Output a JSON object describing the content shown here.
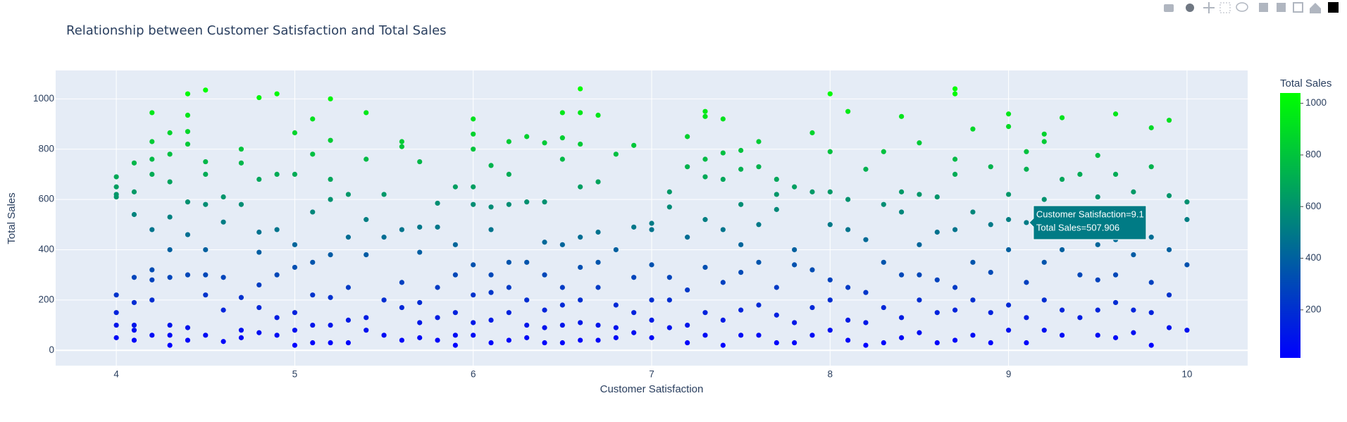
{
  "chart_data": {
    "type": "scatter",
    "title": "Relationship between Customer Satisfaction and Total Sales",
    "x_label": "Customer Satisfaction",
    "y_label": "Total Sales",
    "xlim": [
      3.66,
      10.34
    ],
    "xticks": [
      4,
      5,
      6,
      7,
      8,
      9,
      10
    ],
    "ylim": [
      -61,
      1113
    ],
    "yticks": [
      0,
      200,
      400,
      600,
      800,
      1000
    ],
    "grid": true,
    "colorbar": {
      "title": "Total Sales",
      "cmin": 14,
      "cmax": 1040,
      "ticks": [
        200,
        400,
        600,
        800,
        1000
      ],
      "colorscale": [
        [
          0,
          "#0000ff"
        ],
        [
          0.5,
          "#008080"
        ],
        [
          1,
          "#00ff00"
        ]
      ]
    },
    "tooltip": {
      "x": 9.1,
      "y": 507.906,
      "lines": [
        "Customer Satisfaction=9.1",
        "Total Sales=507.906"
      ]
    },
    "x": [
      4,
      4,
      4,
      4,
      4,
      4,
      4,
      4,
      4.1,
      4.1,
      4.1,
      4.1,
      4.1,
      4.1,
      4.1,
      4.1,
      4.2,
      4.2,
      4.2,
      4.2,
      4.2,
      4.2,
      4.2,
      4.2,
      4.2,
      4.3,
      4.3,
      4.3,
      4.3,
      4.3,
      4.3,
      4.3,
      4.3,
      4.3,
      4.4,
      4.4,
      4.4,
      4.4,
      4.4,
      4.4,
      4.4,
      4.4,
      4.4,
      4.5,
      4.5,
      4.5,
      4.5,
      4.5,
      4.5,
      4.5,
      4.5,
      4.6,
      4.6,
      4.6,
      4.6,
      4.6,
      4.7,
      4.7,
      4.7,
      4.7,
      4.7,
      4.7,
      4.8,
      4.8,
      4.8,
      4.8,
      4.8,
      4.8,
      4.8,
      4.9,
      4.9,
      4.9,
      4.9,
      4.9,
      4.9,
      5,
      5,
      5,
      5,
      5,
      5,
      5,
      5.1,
      5.1,
      5.1,
      5.1,
      5.1,
      5.1,
      5.1,
      5.2,
      5.2,
      5.2,
      5.2,
      5.2,
      5.2,
      5.2,
      5.2,
      5.3,
      5.3,
      5.3,
      5.3,
      5.3,
      5.4,
      5.4,
      5.4,
      5.4,
      5.4,
      5.4,
      5.5,
      5.5,
      5.5,
      5.5,
      5.6,
      5.6,
      5.6,
      5.6,
      5.6,
      5.6,
      5.7,
      5.7,
      5.7,
      5.7,
      5.7,
      5.7,
      5.8,
      5.8,
      5.8,
      5.8,
      5.8,
      5.9,
      5.9,
      5.9,
      5.9,
      5.9,
      5.9,
      6,
      6,
      6,
      6,
      6,
      6,
      6,
      6,
      6,
      6.1,
      6.1,
      6.1,
      6.1,
      6.1,
      6.1,
      6.1,
      6.2,
      6.2,
      6.2,
      6.2,
      6.2,
      6.2,
      6.2,
      6.3,
      6.3,
      6.3,
      6.3,
      6.3,
      6.3,
      6.4,
      6.4,
      6.4,
      6.4,
      6.4,
      6.4,
      6.4,
      6.5,
      6.5,
      6.5,
      6.5,
      6.5,
      6.5,
      6.5,
      6.5,
      6.6,
      6.6,
      6.6,
      6.6,
      6.6,
      6.6,
      6.6,
      6.6,
      6.6,
      6.7,
      6.7,
      6.7,
      6.7,
      6.7,
      6.7,
      6.7,
      6.8,
      6.8,
      6.8,
      6.8,
      6.8,
      6.9,
      6.9,
      6.9,
      6.9,
      6.9,
      7,
      7,
      7,
      7,
      7,
      7,
      7.1,
      7.1,
      7.1,
      7.1,
      7.1,
      7.2,
      7.2,
      7.2,
      7.2,
      7.2,
      7.2,
      7.3,
      7.3,
      7.3,
      7.3,
      7.3,
      7.3,
      7.3,
      7.3,
      7.4,
      7.4,
      7.4,
      7.4,
      7.4,
      7.4,
      7.4,
      7.5,
      7.5,
      7.5,
      7.5,
      7.5,
      7.5,
      7.5,
      7.6,
      7.6,
      7.6,
      7.6,
      7.6,
      7.6,
      7.7,
      7.7,
      7.7,
      7.7,
      7.7,
      7.7,
      7.8,
      7.8,
      7.8,
      7.8,
      7.8,
      7.9,
      7.9,
      7.9,
      7.9,
      7.9,
      8,
      8,
      8,
      8,
      8,
      8,
      8,
      8.1,
      8.1,
      8.1,
      8.1,
      8.1,
      8.1,
      8.2,
      8.2,
      8.2,
      8.2,
      8.2,
      8.3,
      8.3,
      8.3,
      8.3,
      8.3,
      8.4,
      8.4,
      8.4,
      8.4,
      8.4,
      8.4,
      8.5,
      8.5,
      8.5,
      8.5,
      8.5,
      8.5,
      8.6,
      8.6,
      8.6,
      8.6,
      8.6,
      8.7,
      8.7,
      8.7,
      8.7,
      8.7,
      8.7,
      8.7,
      8.7,
      8.8,
      8.8,
      8.8,
      8.8,
      8.8,
      8.9,
      8.9,
      8.9,
      8.9,
      8.9,
      9,
      9,
      9,
      9,
      9,
      9,
      9,
      9.1,
      9.1,
      9.1,
      9.1,
      9.1,
      9.1,
      9.2,
      9.2,
      9.2,
      9.2,
      9.2,
      9.2,
      9.3,
      9.3,
      9.3,
      9.3,
      9.3,
      9.4,
      9.4,
      9.4,
      9.4,
      9.5,
      9.5,
      9.5,
      9.5,
      9.5,
      9.5,
      9.6,
      9.6,
      9.6,
      9.6,
      9.6,
      9.6,
      9.7,
      9.7,
      9.7,
      9.7,
      9.8,
      9.8,
      9.8,
      9.8,
      9.8,
      9.8,
      9.9,
      9.9,
      9.9,
      9.9,
      9.9,
      10,
      10,
      10,
      10
    ],
    "values": [
      50,
      100,
      150,
      220,
      610,
      620,
      650,
      690,
      40,
      80,
      100,
      190,
      290,
      540,
      630,
      745,
      60,
      200,
      280,
      320,
      480,
      700,
      760,
      830,
      945,
      20,
      60,
      100,
      290,
      400,
      530,
      670,
      780,
      865,
      40,
      90,
      300,
      460,
      590,
      820,
      870,
      935,
      1020,
      60,
      220,
      300,
      400,
      580,
      700,
      750,
      1035,
      35,
      160,
      290,
      510,
      610,
      50,
      80,
      210,
      580,
      745,
      800,
      70,
      170,
      260,
      390,
      470,
      680,
      1005,
      60,
      130,
      300,
      480,
      700,
      1020,
      20,
      80,
      150,
      330,
      420,
      700,
      865,
      30,
      100,
      220,
      350,
      550,
      780,
      920,
      30,
      100,
      210,
      380,
      600,
      680,
      835,
      1000,
      30,
      120,
      250,
      450,
      620,
      80,
      130,
      380,
      520,
      760,
      945,
      60,
      200,
      450,
      620,
      40,
      170,
      270,
      480,
      810,
      830,
      50,
      110,
      190,
      390,
      490,
      750,
      40,
      130,
      250,
      490,
      585,
      20,
      60,
      150,
      300,
      420,
      650,
      60,
      110,
      220,
      340,
      580,
      650,
      800,
      860,
      920,
      30,
      120,
      230,
      300,
      480,
      570,
      735,
      40,
      150,
      250,
      350,
      580,
      700,
      830,
      50,
      100,
      200,
      350,
      590,
      850,
      30,
      90,
      160,
      300,
      430,
      590,
      825,
      30,
      100,
      180,
      250,
      420,
      760,
      845,
      945,
      40,
      110,
      200,
      330,
      450,
      650,
      820,
      945,
      1040,
      40,
      100,
      250,
      350,
      470,
      670,
      935,
      50,
      90,
      180,
      400,
      780,
      70,
      150,
      290,
      490,
      815,
      50,
      120,
      200,
      340,
      480,
      505,
      90,
      200,
      290,
      570,
      630,
      30,
      100,
      240,
      450,
      730,
      850,
      60,
      150,
      330,
      520,
      690,
      760,
      930,
      950,
      20,
      120,
      270,
      480,
      680,
      785,
      920,
      60,
      160,
      310,
      420,
      580,
      720,
      795,
      60,
      180,
      350,
      500,
      730,
      830,
      30,
      140,
      250,
      560,
      620,
      680,
      30,
      110,
      340,
      400,
      650,
      60,
      170,
      320,
      630,
      865,
      80,
      200,
      280,
      500,
      630,
      790,
      1020,
      40,
      120,
      250,
      480,
      600,
      950,
      20,
      110,
      230,
      440,
      720,
      30,
      170,
      350,
      580,
      790,
      50,
      130,
      300,
      550,
      630,
      930,
      70,
      200,
      300,
      420,
      620,
      825,
      30,
      150,
      280,
      470,
      610,
      40,
      160,
      250,
      480,
      700,
      760,
      1020,
      1040,
      60,
      200,
      350,
      550,
      880,
      30,
      150,
      310,
      500,
      730,
      80,
      180,
      400,
      520,
      620,
      890,
      940,
      30,
      130,
      270,
      507.906,
      720,
      790,
      80,
      200,
      350,
      600,
      830,
      860,
      60,
      160,
      400,
      680,
      925,
      130,
      300,
      480,
      700,
      60,
      160,
      280,
      420,
      610,
      775,
      50,
      190,
      300,
      440,
      700,
      940,
      70,
      160,
      380,
      630,
      20,
      150,
      270,
      450,
      730,
      885,
      90,
      220,
      400,
      615,
      915,
      80,
      340,
      520,
      590
    ]
  }
}
